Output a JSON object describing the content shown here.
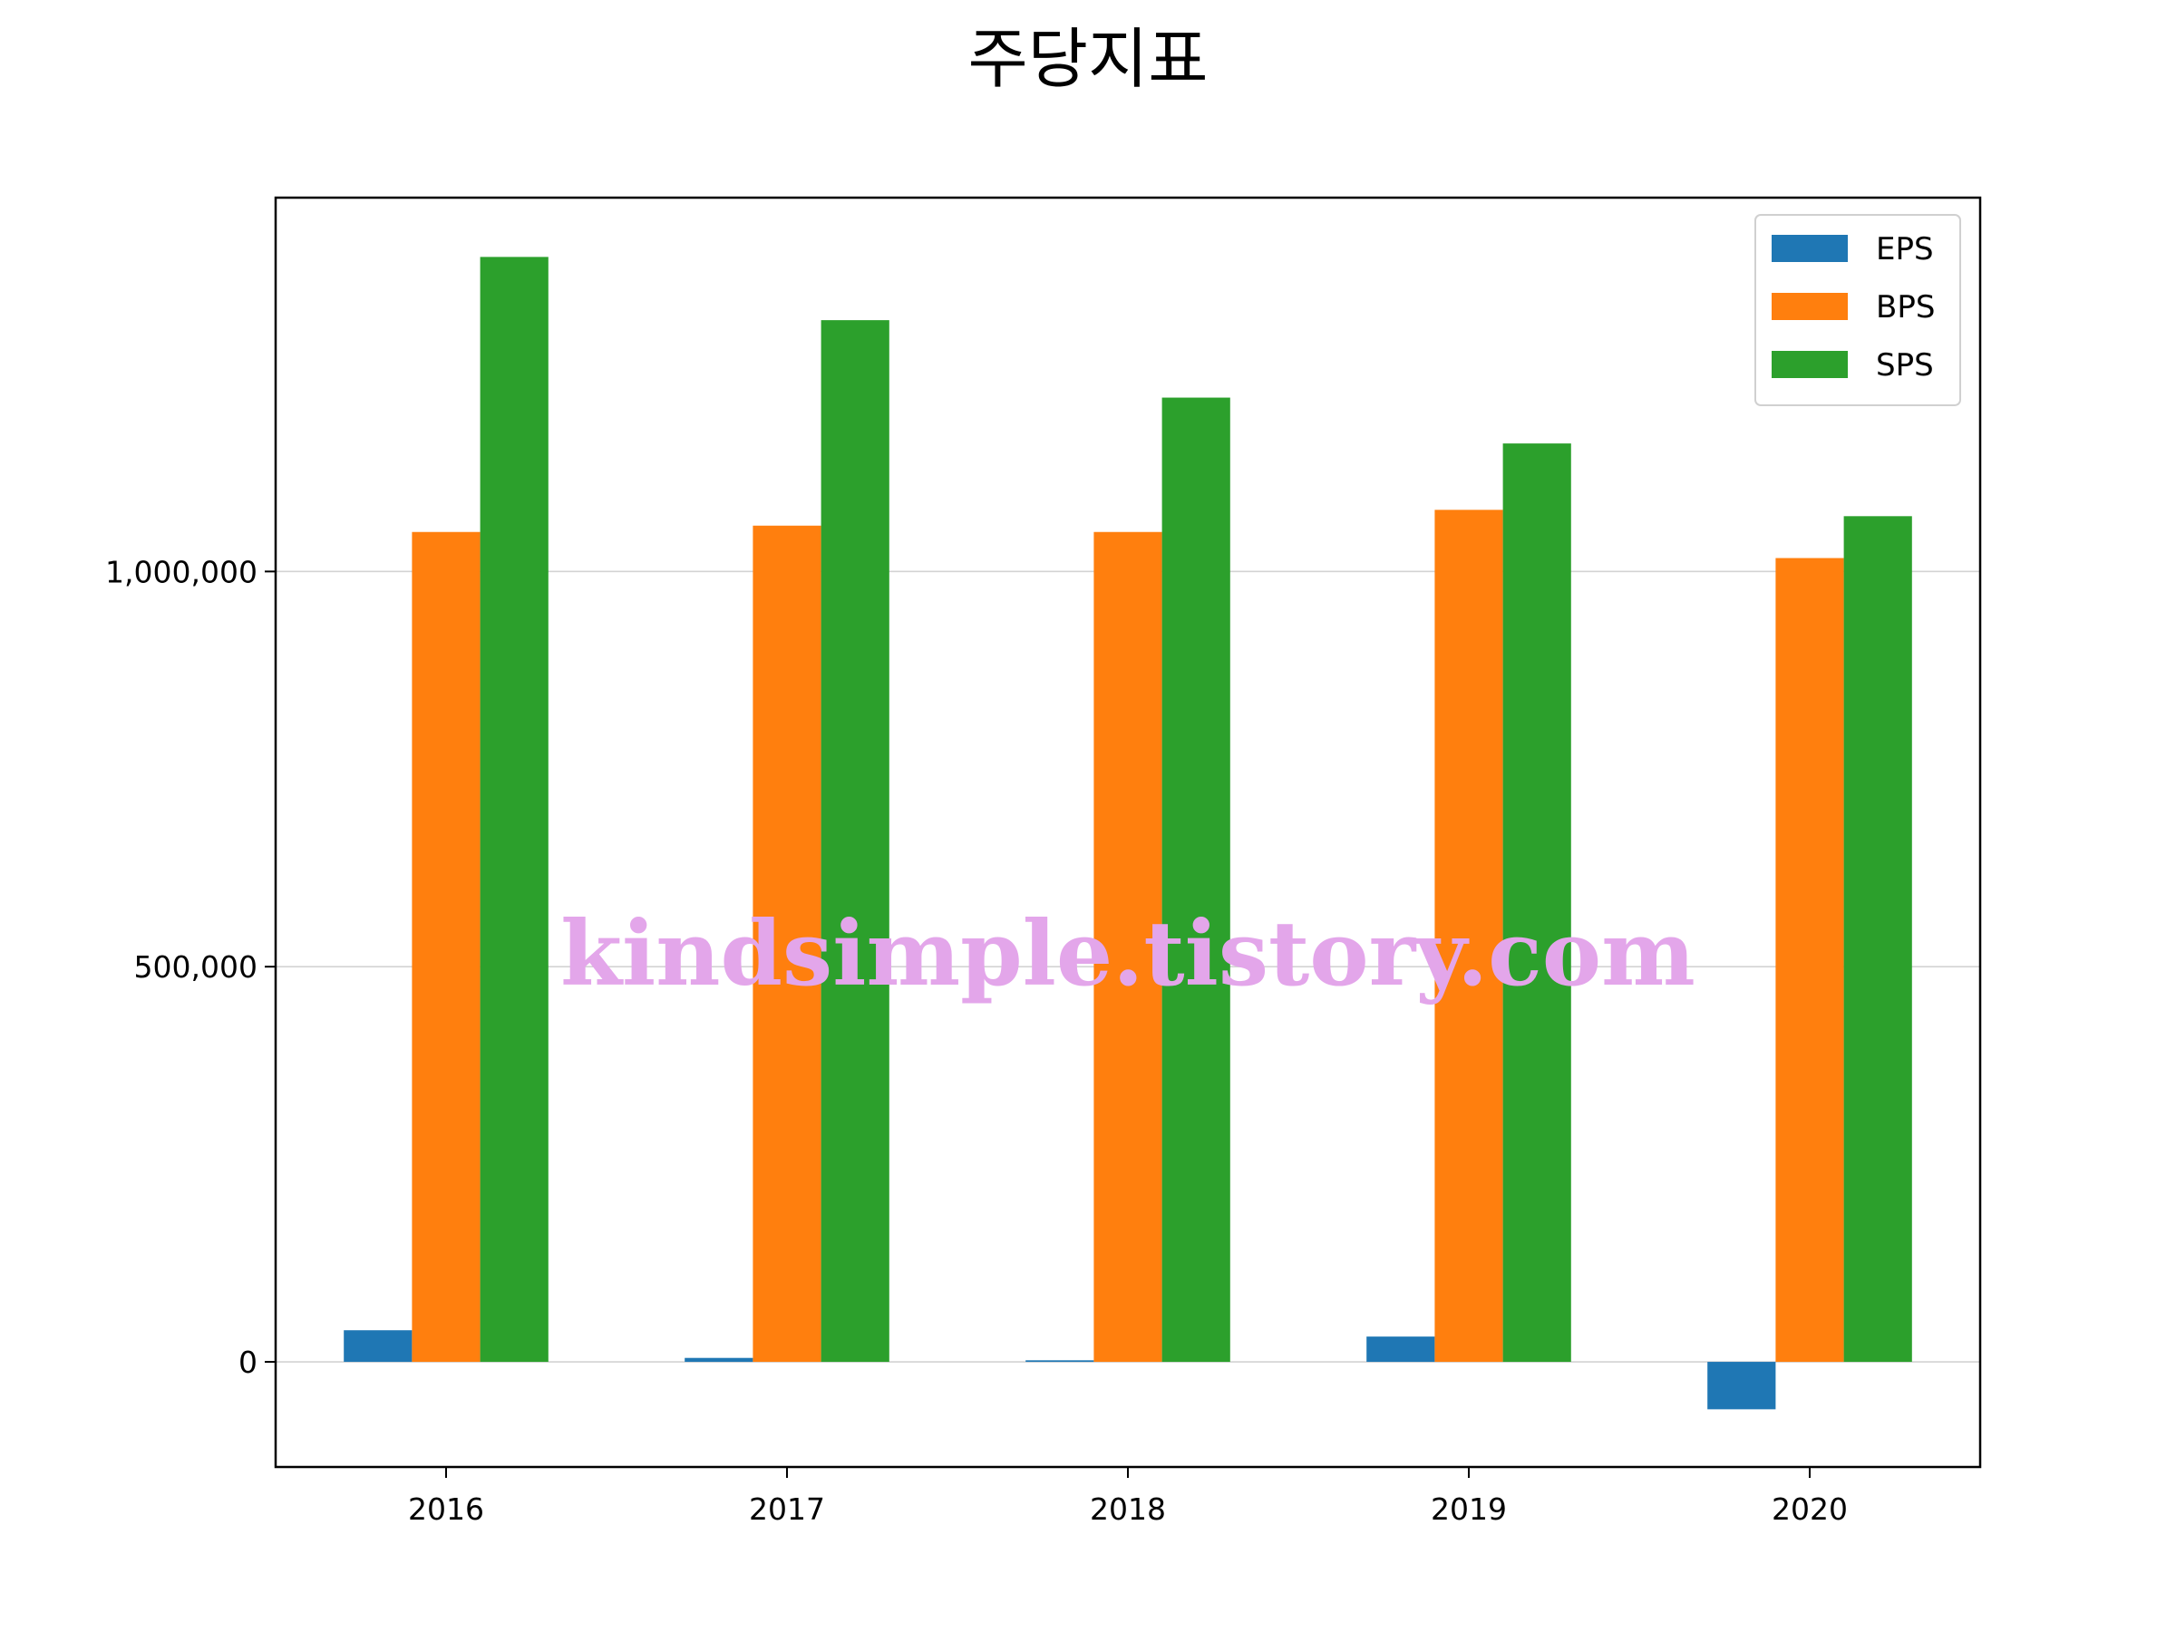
{
  "chart_data": {
    "type": "bar",
    "title": "주당지표",
    "categories": [
      "2016",
      "2017",
      "2018",
      "2019",
      "2020"
    ],
    "series": [
      {
        "name": "EPS",
        "color": "#1f77b4",
        "values": [
          40000,
          5000,
          2000,
          32000,
          -60000
        ]
      },
      {
        "name": "BPS",
        "color": "#ff7f0e",
        "values": [
          1050000,
          1058000,
          1050000,
          1078000,
          1017000
        ]
      },
      {
        "name": "SPS",
        "color": "#2ca02c",
        "values": [
          1398000,
          1318000,
          1220000,
          1162000,
          1070000
        ]
      }
    ],
    "xlabel": "",
    "ylabel": "",
    "ylim": [
      -133000,
      1473000
    ],
    "yticks": [
      {
        "value": 0,
        "label": "0"
      },
      {
        "value": 500000,
        "label": "500,000"
      },
      {
        "value": 1000000,
        "label": "1,000,000"
      }
    ],
    "grid": "horizontal",
    "legend_position": "top-right",
    "watermark": "kindsimple.tistory.com"
  }
}
